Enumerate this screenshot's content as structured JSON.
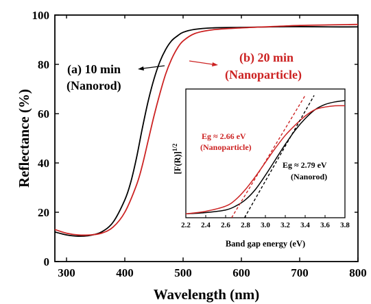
{
  "colors": {
    "black_series": "#000000",
    "red_series": "#cc2222",
    "axis": "#000000"
  },
  "chart_data": [
    {
      "type": "line",
      "title": "",
      "xlabel": "Wavelength (nm)",
      "ylabel": "Reflectance (%)",
      "xlim": [
        280,
        800
      ],
      "ylim": [
        0,
        100
      ],
      "xticks": [
        300,
        400,
        500,
        600,
        700,
        800
      ],
      "yticks": [
        0,
        20,
        40,
        60,
        80,
        100
      ],
      "grid": false,
      "series": [
        {
          "name": "(a) 10 min (Nanorod)",
          "color": "#000000",
          "x": [
            280,
            300,
            320,
            340,
            360,
            380,
            400,
            410,
            420,
            430,
            440,
            450,
            460,
            470,
            480,
            490,
            500,
            520,
            550,
            600,
            650,
            700,
            750,
            800
          ],
          "y": [
            12,
            10.8,
            10.3,
            10.6,
            12,
            16,
            25,
            32,
            42,
            54,
            65,
            74,
            81,
            86,
            89.5,
            91.5,
            93,
            94.2,
            94.8,
            95,
            95.2,
            95.3,
            95.2,
            95.2
          ]
        },
        {
          "name": "(b) 20 min (Nanoparticle)",
          "color": "#cc2222",
          "x": [
            280,
            300,
            320,
            340,
            360,
            380,
            400,
            420,
            430,
            440,
            450,
            460,
            470,
            480,
            490,
            500,
            520,
            550,
            600,
            650,
            700,
            750,
            800
          ],
          "y": [
            13,
            11.5,
            10.8,
            10.8,
            11.5,
            14,
            20,
            31,
            39,
            49,
            59,
            68,
            76,
            82,
            86.5,
            89.5,
            92.5,
            94,
            94.8,
            95.3,
            95.8,
            96,
            96.2
          ]
        }
      ],
      "annotations": [
        {
          "line1": "(a) 10 min",
          "line2": "(Nanorod)",
          "color": "#000000"
        },
        {
          "line1": "(b) 20 min",
          "line2": "(Nanoparticle)",
          "color": "#cc2222"
        }
      ]
    },
    {
      "type": "line",
      "title": "",
      "xlabel": "Band gap energy (eV)",
      "ylabel": "[F(R)]^1/2",
      "ylabel_main": "[F(R)]",
      "ylabel_sup": "1/2",
      "xlim": [
        2.2,
        3.8
      ],
      "xticks": [
        "2.2",
        "2.4",
        "2.6",
        "2.8",
        "3.0",
        "3.2",
        "3.4",
        "3.6",
        "3.8"
      ],
      "ylim": [
        0,
        1
      ],
      "grid": false,
      "series": [
        {
          "name": "Nanorod",
          "color": "#000000",
          "x": [
            2.2,
            2.4,
            2.6,
            2.7,
            2.8,
            2.9,
            3.0,
            3.1,
            3.2,
            3.3,
            3.4,
            3.5,
            3.6,
            3.7,
            3.8
          ],
          "y": [
            0.03,
            0.04,
            0.06,
            0.09,
            0.14,
            0.22,
            0.33,
            0.45,
            0.57,
            0.68,
            0.77,
            0.84,
            0.88,
            0.9,
            0.91
          ]
        },
        {
          "name": "Nanoparticle",
          "color": "#cc2222",
          "x": [
            2.2,
            2.4,
            2.6,
            2.7,
            2.8,
            2.9,
            3.0,
            3.1,
            3.2,
            3.3,
            3.4,
            3.5,
            3.6,
            3.7,
            3.8
          ],
          "y": [
            0.03,
            0.05,
            0.09,
            0.14,
            0.22,
            0.32,
            0.43,
            0.54,
            0.64,
            0.72,
            0.79,
            0.84,
            0.86,
            0.87,
            0.87
          ]
        },
        {
          "name": "Nanorod fit",
          "color": "#000000",
          "dashed": true,
          "x": [
            2.79,
            3.49
          ],
          "y": [
            0.0,
            0.95
          ]
        },
        {
          "name": "Nanoparticle fit",
          "color": "#cc2222",
          "dashed": true,
          "x": [
            2.66,
            3.4
          ],
          "y": [
            0.0,
            0.95
          ]
        }
      ],
      "annotations": [
        {
          "line1": "Eg ≈ 2.66 eV",
          "line2": "(Nanoparticle)",
          "color": "#cc2222"
        },
        {
          "line1": "Eg ≈ 2.79 eV",
          "line2": "(Nanorod)",
          "color": "#000000"
        }
      ]
    }
  ]
}
